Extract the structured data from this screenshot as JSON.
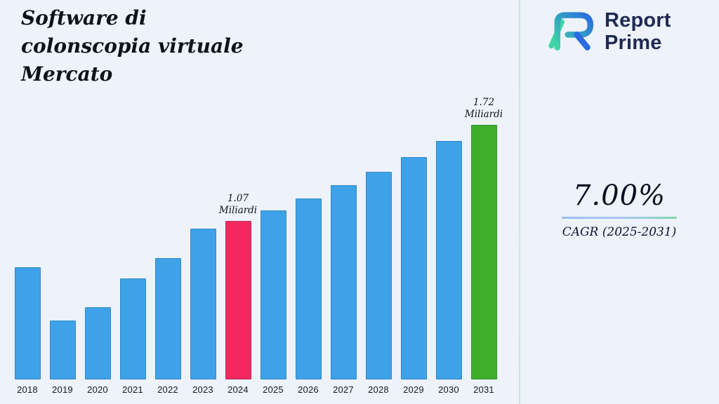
{
  "title": "Software di\ncolonscopia virtuale\nMercato",
  "logo": {
    "line1": "Report",
    "line2": "Prime",
    "icon": "report-prime-r-mark",
    "icon_colors": {
      "teal": "#3FD6A6",
      "blue": "#2A6BE2",
      "navy_text": "#1F2A52"
    }
  },
  "right_panel": {
    "cagr_value": "7.00%",
    "cagr_label": "CAGR (2025-2031)"
  },
  "chart_data": {
    "type": "bar",
    "title": "Software di colonscopia virtuale Mercato",
    "xlabel": "",
    "ylabel": "Miliardi",
    "unit": "Miliardi",
    "ylim": [
      0,
      1.8
    ],
    "grid": false,
    "legend": "none",
    "categories": [
      "2018",
      "2019",
      "2020",
      "2021",
      "2022",
      "2023",
      "2024",
      "2025",
      "2026",
      "2027",
      "2028",
      "2029",
      "2030",
      "2031"
    ],
    "values": [
      0.76,
      0.4,
      0.49,
      0.68,
      0.82,
      1.02,
      1.07,
      1.14,
      1.22,
      1.31,
      1.4,
      1.5,
      1.61,
      1.72
    ],
    "annotations": [
      {
        "index": 6,
        "category": "2024",
        "value_label": "1.07",
        "unit_label": "Miliardi"
      },
      {
        "index": 13,
        "category": "2031",
        "value_label": "1.72",
        "unit_label": "Miliardi"
      }
    ],
    "colors": {
      "default": "#3EA2E8",
      "overrides": {
        "2024": "#F4275F",
        "2031": "#3FAE2B"
      }
    },
    "background": "#EDF2FB"
  }
}
